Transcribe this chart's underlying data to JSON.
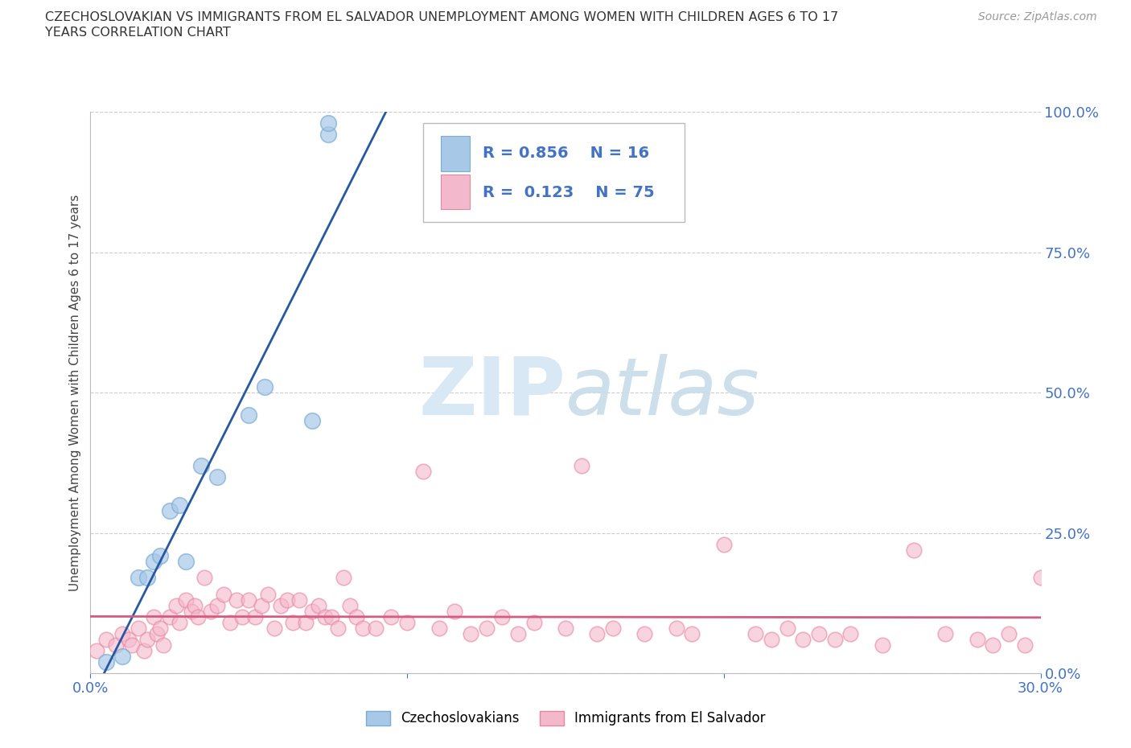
{
  "title_line1": "CZECHOSLOVAKIAN VS IMMIGRANTS FROM EL SALVADOR UNEMPLOYMENT AMONG WOMEN WITH CHILDREN AGES 6 TO 17",
  "title_line2": "YEARS CORRELATION CHART",
  "source": "Source: ZipAtlas.com",
  "ylabel": "Unemployment Among Women with Children Ages 6 to 17 years",
  "xlim": [
    0.0,
    0.3
  ],
  "ylim": [
    0.0,
    1.0
  ],
  "blue_color": "#a8c8e8",
  "blue_edge_color": "#7aadd4",
  "pink_color": "#f4b8cc",
  "pink_edge_color": "#e8869f",
  "blue_line_color": "#2858a0",
  "pink_line_color": "#d45c80",
  "legend_text_color": "#4472c4",
  "tick_color": "#4472c4",
  "grid_color": "#cccccc",
  "background_color": "#ffffff",
  "watermark_color": "#d8e8f4",
  "blue_x": [
    0.005,
    0.01,
    0.015,
    0.018,
    0.02,
    0.022,
    0.025,
    0.028,
    0.03,
    0.035,
    0.04,
    0.05,
    0.055,
    0.07,
    0.075,
    0.075
  ],
  "blue_y": [
    0.02,
    0.03,
    0.17,
    0.17,
    0.2,
    0.21,
    0.29,
    0.3,
    0.2,
    0.37,
    0.35,
    0.46,
    0.51,
    0.45,
    0.96,
    0.98
  ],
  "pink_x": [
    0.002,
    0.005,
    0.008,
    0.01,
    0.012,
    0.013,
    0.015,
    0.017,
    0.018,
    0.02,
    0.021,
    0.022,
    0.023,
    0.025,
    0.027,
    0.028,
    0.03,
    0.032,
    0.033,
    0.034,
    0.036,
    0.038,
    0.04,
    0.042,
    0.044,
    0.046,
    0.048,
    0.05,
    0.052,
    0.054,
    0.056,
    0.058,
    0.06,
    0.062,
    0.064,
    0.066,
    0.068,
    0.07,
    0.072,
    0.074,
    0.076,
    0.078,
    0.08,
    0.082,
    0.084,
    0.086,
    0.09,
    0.095,
    0.1,
    0.105,
    0.11,
    0.115,
    0.12,
    0.125,
    0.13,
    0.135,
    0.14,
    0.15,
    0.155,
    0.16,
    0.165,
    0.175,
    0.185,
    0.19,
    0.2,
    0.21,
    0.215,
    0.22,
    0.225,
    0.23,
    0.235,
    0.24,
    0.25,
    0.26,
    0.27,
    0.28,
    0.285,
    0.29,
    0.295,
    0.3
  ],
  "pink_y": [
    0.04,
    0.06,
    0.05,
    0.07,
    0.06,
    0.05,
    0.08,
    0.04,
    0.06,
    0.1,
    0.07,
    0.08,
    0.05,
    0.1,
    0.12,
    0.09,
    0.13,
    0.11,
    0.12,
    0.1,
    0.17,
    0.11,
    0.12,
    0.14,
    0.09,
    0.13,
    0.1,
    0.13,
    0.1,
    0.12,
    0.14,
    0.08,
    0.12,
    0.13,
    0.09,
    0.13,
    0.09,
    0.11,
    0.12,
    0.1,
    0.1,
    0.08,
    0.17,
    0.12,
    0.1,
    0.08,
    0.08,
    0.1,
    0.09,
    0.36,
    0.08,
    0.11,
    0.07,
    0.08,
    0.1,
    0.07,
    0.09,
    0.08,
    0.37,
    0.07,
    0.08,
    0.07,
    0.08,
    0.07,
    0.23,
    0.07,
    0.06,
    0.08,
    0.06,
    0.07,
    0.06,
    0.07,
    0.05,
    0.22,
    0.07,
    0.06,
    0.05,
    0.07,
    0.05,
    0.17
  ],
  "legend_blue_label": "Czechoslovakians",
  "legend_pink_label": "Immigrants from El Salvador"
}
